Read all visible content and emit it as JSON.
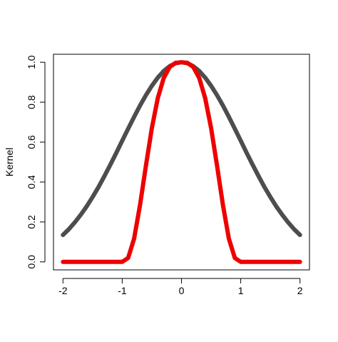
{
  "chart_data": {
    "type": "line",
    "y_label": "Kernel",
    "x": [
      -2,
      -1.9,
      -1.8,
      -1.7,
      -1.6,
      -1.5,
      -1.4,
      -1.3,
      -1.2,
      -1.1,
      -1,
      -0.9,
      -0.8,
      -0.7,
      -0.6,
      -0.5,
      -0.4,
      -0.3,
      -0.2,
      -0.1,
      0,
      0.1,
      0.2,
      0.3,
      0.4,
      0.5,
      0.6,
      0.7,
      0.8,
      0.9,
      1,
      1.1,
      1.2,
      1.3,
      1.4,
      1.5,
      1.6,
      1.7,
      1.8,
      1.9,
      2
    ],
    "series": [
      {
        "color": "#4d4d4d",
        "values": [
          0.135,
          0.164,
          0.198,
          0.236,
          0.278,
          0.325,
          0.375,
          0.43,
          0.487,
          0.546,
          0.607,
          0.667,
          0.726,
          0.783,
          0.835,
          0.882,
          0.923,
          0.956,
          0.98,
          0.995,
          1,
          0.995,
          0.98,
          0.956,
          0.923,
          0.882,
          0.835,
          0.783,
          0.726,
          0.667,
          0.607,
          0.546,
          0.487,
          0.43,
          0.375,
          0.325,
          0.278,
          0.236,
          0.198,
          0.164,
          0.135
        ]
      },
      {
        "color": "#ee0000",
        "values": [
          0,
          0,
          0,
          0,
          0,
          0,
          0,
          0,
          0,
          0,
          0,
          0.02,
          0.116,
          0.284,
          0.482,
          0.67,
          0.82,
          0.921,
          0.976,
          0.997,
          1,
          0.997,
          0.976,
          0.921,
          0.82,
          0.67,
          0.482,
          0.284,
          0.116,
          0.02,
          0,
          0,
          0,
          0,
          0,
          0,
          0,
          0,
          0,
          0,
          0
        ]
      }
    ],
    "xlim": [
      -2.16,
      2.16
    ],
    "ylim": [
      -0.04,
      1.04
    ],
    "xticks": [
      -2,
      -1,
      0,
      1,
      2
    ],
    "yticks": [
      {
        "value": 0,
        "label": "0.0"
      },
      {
        "value": 0.2,
        "label": "0.2"
      },
      {
        "value": 0.4,
        "label": "0.4"
      },
      {
        "value": 0.6,
        "label": "0.6"
      },
      {
        "value": 0.8,
        "label": "0.8"
      },
      {
        "value": 1,
        "label": "1.0"
      }
    ]
  }
}
